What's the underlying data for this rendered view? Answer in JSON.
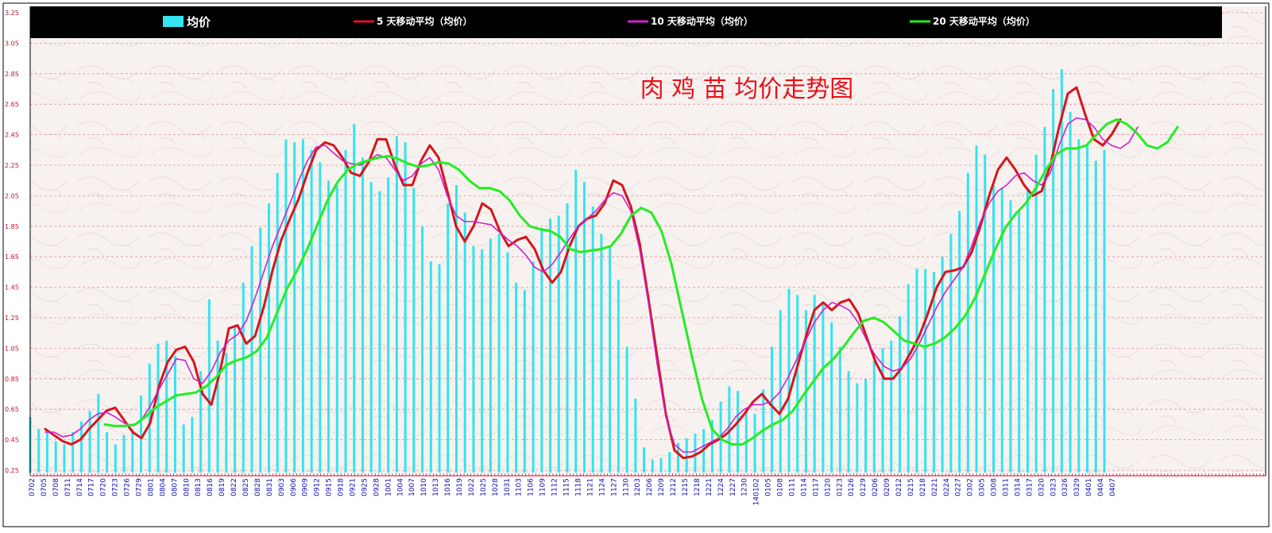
{
  "chart_data": {
    "type": "bar",
    "title": "肉 鸡 苗 均价走势图",
    "title_color": "#e8101a",
    "background_color": "#f7f1ee",
    "grid": true,
    "grid_color": "#e88a9a",
    "legend_position": "top",
    "legend_background": "#000000",
    "ylim": [
      0.25,
      3.25
    ],
    "yticks": [
      "3.25",
      "3.05",
      "2.85",
      "2.65",
      "2.45",
      "2.25",
      "2.05",
      "1.85",
      "1.65",
      "1.45",
      "1.25",
      "1.05",
      "0.85",
      "0.65",
      "0.45",
      "0.25"
    ],
    "x_tick_labels": [
      "0702",
      "0705",
      "0708",
      "0711",
      "0714",
      "0717",
      "0720",
      "0723",
      "0726",
      "0729",
      "0801",
      "0804",
      "0807",
      "0810",
      "0813",
      "0816",
      "0819",
      "0822",
      "0825",
      "0828",
      "0831",
      "0903",
      "0906",
      "0909",
      "0912",
      "0915",
      "0918",
      "0921",
      "0925",
      "0928",
      "1001",
      "1004",
      "1007",
      "1010",
      "1013",
      "1016",
      "1019",
      "1022",
      "1025",
      "1028",
      "1031",
      "1103",
      "1106",
      "1109",
      "1112",
      "1115",
      "1118",
      "1121",
      "1124",
      "1127",
      "1130",
      "1203",
      "1206",
      "1209",
      "1212",
      "1215",
      "1218",
      "1221",
      "1224",
      "1227",
      "1230",
      "140102",
      "0105",
      "0108",
      "0111",
      "0114",
      "0117",
      "0120",
      "0123",
      "0126",
      "0129",
      "0206",
      "0209",
      "0212",
      "0215",
      "0218",
      "0221",
      "0224",
      "0227",
      "0302",
      "0305",
      "0308",
      "0311",
      "0314",
      "0317",
      "0320",
      "0323",
      "0326",
      "0329",
      "0401",
      "0404",
      "0407"
    ],
    "series": [
      {
        "name": "均价",
        "kind": "bar",
        "color": "#33e4f0",
        "values": [
          0.6,
          0.52,
          0.5,
          0.44,
          0.42,
          0.5,
          0.57,
          0.64,
          0.75,
          0.5,
          0.42,
          0.48,
          0.52,
          0.74,
          0.95,
          1.08,
          1.1,
          1.0,
          0.55,
          0.6,
          0.9,
          1.37,
          1.1,
          1.02,
          1.2,
          1.48,
          1.72,
          1.84,
          2.0,
          2.2,
          2.42,
          2.4,
          2.42,
          2.35,
          2.27,
          2.15,
          2.12,
          2.35,
          2.52,
          2.3,
          2.14,
          2.08,
          2.17,
          2.44,
          2.4,
          2.1,
          1.85,
          1.62,
          1.6,
          2.0,
          2.12,
          1.94,
          1.72,
          1.7,
          1.77,
          1.8,
          1.68,
          1.48,
          1.43,
          1.62,
          1.84,
          1.9,
          1.92,
          2.0,
          2.22,
          2.14,
          1.98,
          1.8,
          1.72,
          1.5,
          1.06,
          0.72,
          0.4,
          0.32,
          0.33,
          0.37,
          0.43,
          0.46,
          0.49,
          0.52,
          0.58,
          0.7,
          0.8,
          0.77,
          0.65,
          0.62,
          0.78,
          1.06,
          1.3,
          1.44,
          1.4,
          1.3,
          1.4,
          1.35,
          1.22,
          1.06,
          0.9,
          0.82,
          0.85,
          0.97,
          1.05,
          1.1,
          1.26,
          1.47,
          1.57,
          1.57,
          1.55,
          1.65,
          1.8,
          1.95,
          2.2,
          2.38,
          2.32,
          2.12,
          2.1,
          2.02,
          1.95,
          2.1,
          2.32,
          2.5,
          2.75,
          2.88,
          2.6,
          2.42,
          2.38,
          2.28,
          2.35
        ]
      },
      {
        "name": "5 天移动平均（均价）",
        "kind": "line",
        "color": "#d8141c",
        "values": [
          0.52,
          0.48,
          0.44,
          0.42,
          0.45,
          0.52,
          0.58,
          0.64,
          0.66,
          0.58,
          0.5,
          0.46,
          0.56,
          0.8,
          0.96,
          1.04,
          1.06,
          0.96,
          0.75,
          0.68,
          0.9,
          1.18,
          1.2,
          1.08,
          1.13,
          1.32,
          1.56,
          1.76,
          1.9,
          2.03,
          2.2,
          2.35,
          2.4,
          2.38,
          2.3,
          2.2,
          2.18,
          2.27,
          2.42,
          2.42,
          2.25,
          2.12,
          2.12,
          2.28,
          2.38,
          2.3,
          2.08,
          1.85,
          1.75,
          1.85,
          2.0,
          1.96,
          1.82,
          1.72,
          1.76,
          1.78,
          1.7,
          1.56,
          1.48,
          1.55,
          1.72,
          1.85,
          1.9,
          1.92,
          2.0,
          2.15,
          2.12,
          1.98,
          1.74,
          1.38,
          1.0,
          0.62,
          0.38,
          0.33,
          0.34,
          0.37,
          0.42,
          0.45,
          0.49,
          0.55,
          0.62,
          0.7,
          0.75,
          0.68,
          0.62,
          0.72,
          0.92,
          1.12,
          1.3,
          1.35,
          1.3,
          1.35,
          1.37,
          1.28,
          1.12,
          0.96,
          0.85,
          0.85,
          0.92,
          1.02,
          1.13,
          1.28,
          1.45,
          1.55,
          1.56,
          1.58,
          1.68,
          1.85,
          2.05,
          2.22,
          2.3,
          2.22,
          2.12,
          2.05,
          2.08,
          2.25,
          2.5,
          2.72,
          2.76,
          2.58,
          2.42,
          2.38,
          2.45,
          2.55
        ]
      },
      {
        "name": "10 天移动平均（均价）",
        "kind": "line",
        "color": "#cc22cc",
        "values": [
          0.5,
          0.5,
          0.47,
          0.48,
          0.52,
          0.58,
          0.62,
          0.63,
          0.6,
          0.56,
          0.54,
          0.58,
          0.67,
          0.78,
          0.88,
          0.98,
          0.97,
          0.85,
          0.82,
          0.9,
          1.02,
          1.1,
          1.14,
          1.23,
          1.38,
          1.55,
          1.72,
          1.86,
          2.0,
          2.15,
          2.28,
          2.37,
          2.38,
          2.33,
          2.28,
          2.26,
          2.25,
          2.28,
          2.32,
          2.3,
          2.22,
          2.15,
          2.18,
          2.26,
          2.3,
          2.22,
          2.05,
          1.92,
          1.88,
          1.88,
          1.87,
          1.86,
          1.81,
          1.76,
          1.72,
          1.66,
          1.58,
          1.55,
          1.6,
          1.68,
          1.77,
          1.85,
          1.9,
          1.95,
          2.02,
          2.07,
          2.05,
          1.95,
          1.7,
          1.35,
          0.95,
          0.6,
          0.42,
          0.37,
          0.37,
          0.4,
          0.43,
          0.46,
          0.52,
          0.6,
          0.65,
          0.68,
          0.68,
          0.7,
          0.76,
          0.86,
          0.98,
          1.1,
          1.22,
          1.3,
          1.35,
          1.33,
          1.3,
          1.22,
          1.1,
          1.0,
          0.93,
          0.9,
          0.92,
          0.98,
          1.08,
          1.2,
          1.32,
          1.42,
          1.5,
          1.58,
          1.72,
          1.88,
          2.0,
          2.08,
          2.12,
          2.18,
          2.2,
          2.15,
          2.12,
          2.2,
          2.38,
          2.52,
          2.56,
          2.55,
          2.5,
          2.42,
          2.38,
          2.36,
          2.4,
          2.5
        ]
      },
      {
        "name": "20 天移动平均（均价）",
        "kind": "line",
        "color": "#22ee22",
        "values": [
          0.55,
          0.54,
          0.54,
          0.55,
          0.6,
          0.66,
          0.7,
          0.74,
          0.75,
          0.76,
          0.8,
          0.86,
          0.94,
          0.97,
          0.99,
          1.03,
          1.12,
          1.28,
          1.44,
          1.56,
          1.7,
          1.86,
          2.02,
          2.14,
          2.22,
          2.26,
          2.28,
          2.3,
          2.31,
          2.29,
          2.26,
          2.24,
          2.25,
          2.27,
          2.26,
          2.22,
          2.15,
          2.1,
          2.1,
          2.08,
          2.02,
          1.92,
          1.85,
          1.83,
          1.82,
          1.78,
          1.7,
          1.68,
          1.69,
          1.7,
          1.72,
          1.8,
          1.92,
          1.97,
          1.94,
          1.82,
          1.6,
          1.3,
          1.0,
          0.72,
          0.52,
          0.45,
          0.42,
          0.42,
          0.46,
          0.51,
          0.55,
          0.58,
          0.64,
          0.74,
          0.83,
          0.92,
          0.98,
          1.06,
          1.15,
          1.23,
          1.25,
          1.22,
          1.16,
          1.1,
          1.08,
          1.06,
          1.08,
          1.12,
          1.18,
          1.26,
          1.38,
          1.54,
          1.7,
          1.84,
          1.93,
          2.0,
          2.1,
          2.22,
          2.32,
          2.36,
          2.36,
          2.38,
          2.45,
          2.52,
          2.55,
          2.52,
          2.46,
          2.38,
          2.36,
          2.4,
          2.5
        ]
      }
    ]
  }
}
